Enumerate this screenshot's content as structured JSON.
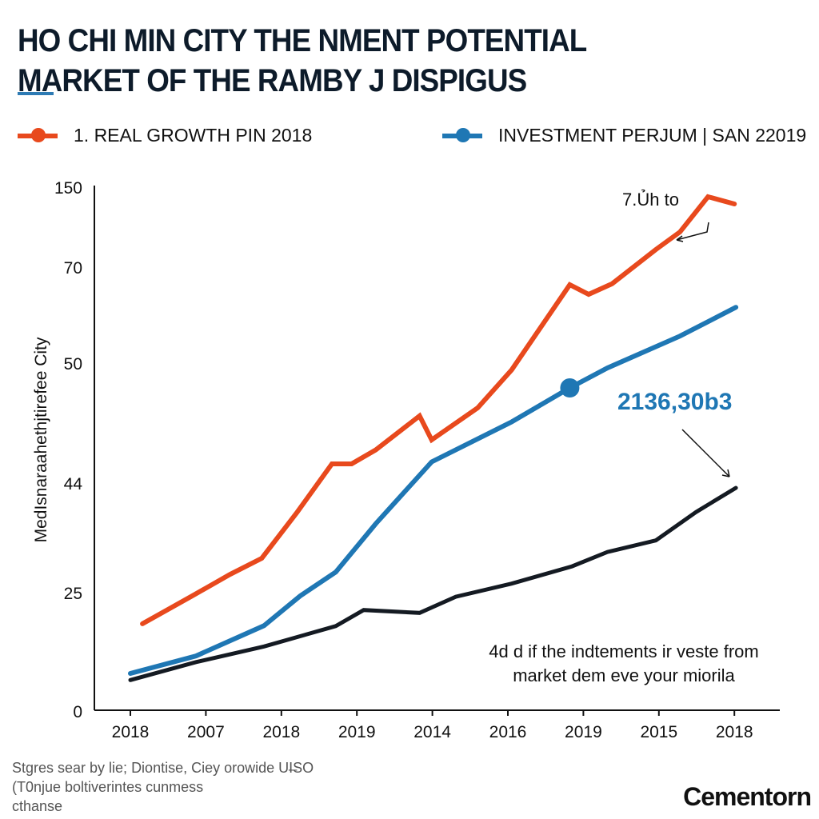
{
  "chart_data": {
    "type": "line",
    "title_lines": [
      "HO CHI MIN CITY THE NMENT POTENTIAL",
      "MARKET OF THE RAMBY J DISPIGUS"
    ],
    "ylabel": "MedIsnaraahethjtirefee City",
    "xlabel": "",
    "categories": [
      "2018",
      "2007",
      "2018",
      "2019",
      "2014",
      "2016",
      "2019",
      "2015",
      "2018"
    ],
    "y_ticks": [
      150,
      70,
      50,
      44,
      25,
      0
    ],
    "y_scale": "non-uniform (piecewise between printed tick labels)",
    "ylim": [
      0,
      150
    ],
    "grid": false,
    "legend_placement": "top",
    "colors": {
      "orange": "#e8491d",
      "blue": "#1f77b4",
      "black": "#141a22"
    },
    "series": [
      {
        "name": "1. REAL GROWTH PIN 2018",
        "color": "#e8491d",
        "x": [
          0.16,
          0.82,
          1.32,
          1.74,
          2.21,
          2.67,
          2.93,
          3.25,
          3.83,
          3.99,
          4.6,
          5.05,
          5.82,
          6.07,
          6.38,
          6.96,
          7.28,
          7.65,
          8.0
        ],
        "y": [
          18.6,
          24.5,
          28.3,
          31.1,
          39.1,
          45.0,
          45.0,
          45.7,
          47.4,
          46.2,
          47.8,
          49.7,
          66.5,
          64.5,
          66.7,
          88.4,
          106,
          141.2,
          134
        ]
      },
      {
        "name": "INVESTMENT PERJUM | SAN 22019",
        "color": "#1f77b4",
        "x": [
          0,
          0.87,
          1.77,
          2.25,
          2.72,
          3.25,
          3.99,
          5.05,
          5.82,
          6.32,
          7.28,
          8.02
        ],
        "y": [
          8.1,
          11.8,
          18.2,
          24.5,
          28.7,
          37.1,
          45.1,
          47.1,
          48.8,
          49.8,
          55.8,
          61.8
        ],
        "marker": {
          "x": 5.82,
          "y": 48.8
        }
      },
      {
        "color": "#141a22",
        "x": [
          0,
          0.87,
          1.77,
          2.72,
          3.09,
          3.83,
          4.31,
          5.05,
          5.85,
          6.32,
          6.96,
          7.49,
          8.02
        ],
        "y": [
          6.7,
          10.5,
          13.8,
          18.1,
          21.5,
          20.9,
          24.3,
          26.7,
          29.7,
          32.2,
          34.2,
          39.1,
          43.3
        ]
      }
    ],
    "annotations": {
      "peak_label": "7.Ủh to",
      "value_label": "2136,30b3",
      "note_lines": [
        "4d d if the indtements ir veste from",
        "market dem eve your miorila"
      ]
    }
  },
  "footer": {
    "lines": [
      "Stgres sear by lie; Diontise, Ciey orowide UI̶SO",
      "(T0njue boltiverintes cunmess",
      "cthanse"
    ]
  },
  "brand": "Cementorn"
}
